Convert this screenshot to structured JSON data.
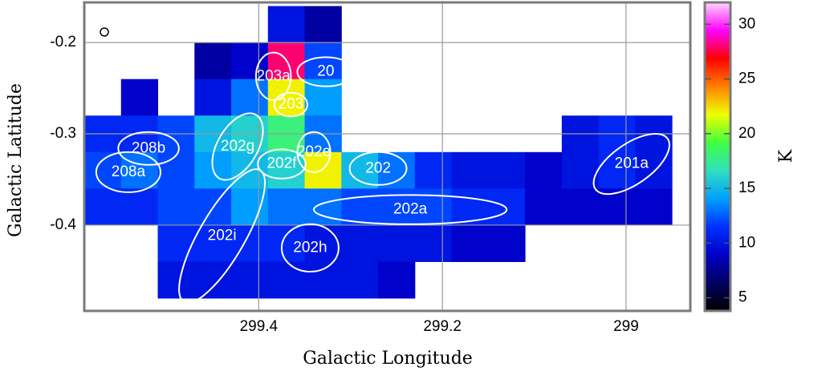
{
  "chart_data": {
    "type": "heatmap",
    "xlabel": "Galactic Longitude",
    "ylabel": "Galactic Latitude",
    "xlim": [
      299.59,
      298.93
    ],
    "ylim": [
      -0.494,
      -0.156
    ],
    "xticks": [
      299.4,
      299.2,
      299.0
    ],
    "yticks": [
      -0.2,
      -0.3,
      -0.4
    ],
    "grid": true,
    "x": [
      299.57,
      299.53,
      299.49,
      299.45,
      299.41,
      299.37,
      299.33,
      299.29,
      299.25,
      299.21,
      299.17,
      299.13,
      299.09,
      299.05,
      299.01,
      298.97
    ],
    "y": [
      -0.18,
      -0.22,
      -0.26,
      -0.3,
      -0.34,
      -0.38,
      -0.42,
      -0.46
    ],
    "z": [
      [
        null,
        null,
        null,
        null,
        null,
        10,
        8,
        null,
        null,
        null,
        null,
        null,
        null,
        null,
        null,
        null
      ],
      [
        null,
        null,
        null,
        8,
        9,
        28,
        12,
        null,
        null,
        null,
        null,
        null,
        null,
        null,
        null,
        null
      ],
      [
        null,
        9,
        null,
        10,
        13,
        22,
        14,
        null,
        null,
        null,
        null,
        null,
        null,
        null,
        null,
        null
      ],
      [
        11,
        11,
        12,
        15,
        16,
        18,
        13,
        null,
        null,
        null,
        null,
        null,
        null,
        10,
        11,
        10
      ],
      [
        12,
        13,
        12,
        14,
        15,
        16,
        22,
        15,
        13,
        11,
        10,
        10,
        9,
        10,
        11,
        10
      ],
      [
        11,
        11,
        12,
        12,
        14,
        13,
        13,
        12,
        12,
        12,
        11,
        11,
        9,
        9,
        9,
        9
      ],
      [
        null,
        null,
        11,
        11,
        11,
        11,
        10,
        10,
        10,
        10,
        9,
        9,
        null,
        null,
        null,
        null
      ],
      [
        null,
        null,
        10,
        10,
        10,
        10,
        10,
        10,
        9,
        null,
        null,
        null,
        null,
        null,
        null,
        null
      ]
    ],
    "colorbar": {
      "label": "K",
      "lim": [
        3.8,
        32
      ],
      "ticks": [
        5,
        10,
        15,
        20,
        25,
        30
      ],
      "colormap": [
        "#000000",
        "#000060",
        "#0000c8",
        "#0030ff",
        "#00a0ff",
        "#30e0c0",
        "#40ff40",
        "#f0ff00",
        "#ff8000",
        "#ff0000",
        "#ff00ff",
        "#ffd8ff"
      ]
    },
    "regions": [
      {
        "label": "208b",
        "l": 299.52,
        "b": -0.316,
        "rl": 0.033,
        "rb": 0.018,
        "angle": 0
      },
      {
        "label": "208a",
        "l": 299.542,
        "b": -0.342,
        "rl": 0.035,
        "rb": 0.022,
        "angle": 0
      },
      {
        "label": "202g",
        "l": 299.423,
        "b": -0.314,
        "rl": 0.04,
        "rb": 0.022,
        "angle": -60
      },
      {
        "label": "202f",
        "l": 299.375,
        "b": -0.333,
        "rl": 0.026,
        "rb": 0.016,
        "angle": 0
      },
      {
        "label": "202e",
        "l": 299.34,
        "b": -0.32,
        "rl": 0.018,
        "rb": 0.022,
        "angle": 0
      },
      {
        "label": "202",
        "l": 299.27,
        "b": -0.338,
        "rl": 0.031,
        "rb": 0.018,
        "angle": 0
      },
      {
        "label": "203a",
        "l": 299.384,
        "b": -0.237,
        "rl": 0.019,
        "rb": 0.026,
        "angle": 0
      },
      {
        "label": "20",
        "l": 299.327,
        "b": -0.232,
        "rl": 0.031,
        "rb": 0.016,
        "angle": 0
      },
      {
        "label": "203",
        "l": 299.365,
        "b": -0.268,
        "rl": 0.018,
        "rb": 0.013,
        "angle": 0
      },
      {
        "label": "202a",
        "l": 299.235,
        "b": -0.383,
        "rl": 0.105,
        "rb": 0.016,
        "angle": 0
      },
      {
        "label": "202i",
        "l": 299.44,
        "b": -0.412,
        "rl": 0.083,
        "rb": 0.025,
        "angle": -60
      },
      {
        "label": "202h",
        "l": 299.344,
        "b": -0.425,
        "rl": 0.031,
        "rb": 0.026,
        "angle": 0
      },
      {
        "label": "201a",
        "l": 298.994,
        "b": -0.333,
        "rl": 0.048,
        "rb": 0.022,
        "angle": -35
      }
    ]
  }
}
